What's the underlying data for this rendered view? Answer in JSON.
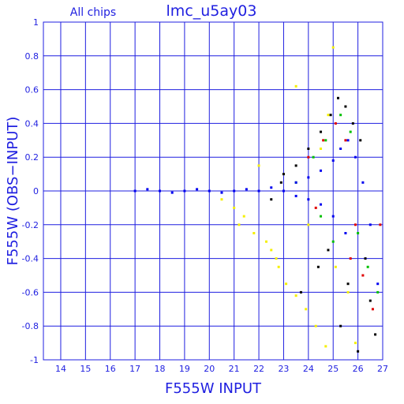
{
  "chart_data": {
    "type": "scatter",
    "title": "lmc_u5ay03",
    "subtitle": "All chips",
    "xlabel": "F555W INPUT",
    "ylabel": "F555W (OBS−INPUT)",
    "xlim": [
      13.3,
      27
    ],
    "ylim": [
      -1,
      1
    ],
    "xticks": [
      14,
      15,
      16,
      17,
      18,
      19,
      20,
      21,
      22,
      23,
      24,
      25,
      26,
      27
    ],
    "yticks": [
      -1,
      -0.8,
      -0.6,
      -0.4,
      -0.2,
      0,
      0.2,
      0.4,
      0.6,
      0.8,
      1
    ],
    "grid": true,
    "axis_color": "#1f1fe0",
    "series": [
      {
        "color": "#f5f000",
        "points": [
          [
            20.5,
            -0.05
          ],
          [
            21.0,
            -0.1
          ],
          [
            21.4,
            -0.15
          ],
          [
            21.8,
            -0.25
          ],
          [
            22.3,
            -0.3
          ],
          [
            22.7,
            -0.4
          ],
          [
            23.1,
            -0.55
          ],
          [
            23.5,
            -0.62
          ],
          [
            23.9,
            -0.7
          ],
          [
            24.3,
            -0.8
          ],
          [
            24.7,
            -0.92
          ],
          [
            25.0,
            0.85
          ],
          [
            25.1,
            -0.45
          ],
          [
            24.5,
            0.25
          ],
          [
            23.5,
            0.62
          ],
          [
            22.5,
            -0.35
          ],
          [
            23.0,
            0.1
          ],
          [
            25.6,
            -0.6
          ],
          [
            24.0,
            -0.2
          ],
          [
            22.0,
            0.15
          ],
          [
            21.2,
            -0.2
          ],
          [
            22.8,
            -0.45
          ],
          [
            24.8,
            0.45
          ],
          [
            25.9,
            -0.9
          ]
        ]
      },
      {
        "color": "#000000",
        "points": [
          [
            23.0,
            0.1
          ],
          [
            23.5,
            0.15
          ],
          [
            24.0,
            0.25
          ],
          [
            24.5,
            0.35
          ],
          [
            24.9,
            0.45
          ],
          [
            25.2,
            0.55
          ],
          [
            25.5,
            0.5
          ],
          [
            25.8,
            0.4
          ],
          [
            26.1,
            0.3
          ],
          [
            26.3,
            -0.4
          ],
          [
            26.5,
            -0.65
          ],
          [
            26.7,
            -0.85
          ],
          [
            25.6,
            -0.55
          ],
          [
            24.4,
            -0.45
          ],
          [
            23.7,
            -0.6
          ],
          [
            22.5,
            -0.05
          ],
          [
            24.8,
            -0.35
          ],
          [
            26.0,
            -0.95
          ],
          [
            25.3,
            -0.8
          ],
          [
            22.9,
            0.05
          ]
        ]
      },
      {
        "color": "#e00000",
        "points": [
          [
            24.0,
            0.2
          ],
          [
            24.6,
            0.3
          ],
          [
            25.1,
            0.4
          ],
          [
            25.5,
            0.3
          ],
          [
            25.9,
            -0.2
          ],
          [
            26.2,
            -0.5
          ],
          [
            26.6,
            -0.7
          ],
          [
            26.9,
            -0.2
          ],
          [
            25.7,
            -0.4
          ],
          [
            24.3,
            -0.1
          ]
        ]
      },
      {
        "color": "#00c000",
        "points": [
          [
            23.5,
            0.05
          ],
          [
            24.2,
            0.2
          ],
          [
            24.7,
            0.3
          ],
          [
            25.3,
            0.45
          ],
          [
            25.7,
            0.35
          ],
          [
            26.0,
            -0.25
          ],
          [
            26.4,
            -0.45
          ],
          [
            25.0,
            -0.3
          ],
          [
            24.5,
            -0.15
          ],
          [
            26.8,
            -0.6
          ]
        ]
      },
      {
        "color": "#0000f0",
        "points": [
          [
            17.0,
            0.0
          ],
          [
            17.5,
            0.01
          ],
          [
            18.0,
            0.0
          ],
          [
            18.5,
            -0.01
          ],
          [
            19.0,
            0.0
          ],
          [
            19.5,
            0.01
          ],
          [
            20.0,
            0.0
          ],
          [
            20.5,
            -0.01
          ],
          [
            21.0,
            0.0
          ],
          [
            21.5,
            0.01
          ],
          [
            22.0,
            0.0
          ],
          [
            22.5,
            0.02
          ],
          [
            23.0,
            0.0
          ],
          [
            23.5,
            0.05
          ],
          [
            24.0,
            0.08
          ],
          [
            24.5,
            0.12
          ],
          [
            25.0,
            0.18
          ],
          [
            25.3,
            0.25
          ],
          [
            25.6,
            0.3
          ],
          [
            25.9,
            0.2
          ],
          [
            26.2,
            0.05
          ],
          [
            26.5,
            -0.2
          ],
          [
            26.8,
            -0.55
          ],
          [
            25.5,
            -0.25
          ],
          [
            25.0,
            -0.15
          ],
          [
            24.5,
            -0.08
          ],
          [
            24.0,
            -0.05
          ],
          [
            23.5,
            -0.03
          ]
        ]
      }
    ]
  }
}
